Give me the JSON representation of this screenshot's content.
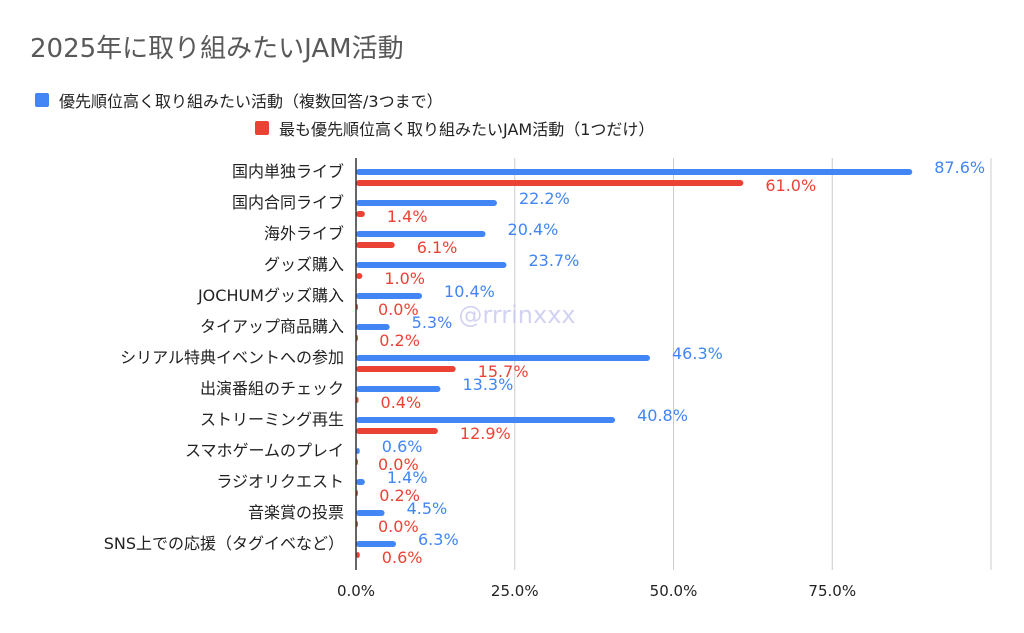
{
  "chart_data": {
    "type": "bar",
    "orientation": "horizontal",
    "title": "2025年に取り組みたいJAM活動",
    "categories": [
      "国内単独ライブ",
      "国内合同ライブ",
      "海外ライブ",
      "グッズ購入",
      "JOCHUMグッズ購入",
      "タイアップ商品購入",
      "シリアル特典イベントへの参加",
      "出演番組のチェック",
      "ストリーミング再生",
      "スマホゲームのプレイ",
      "ラジオリクエスト",
      "音楽賞の投票",
      "SNS上での応援（タグイベなど）"
    ],
    "series": [
      {
        "name": "優先順位高く取り組みたい活動（複数回答/3つまで）",
        "color": "#4285f4",
        "values": [
          87.6,
          22.2,
          20.4,
          23.7,
          10.4,
          5.3,
          46.3,
          13.3,
          40.8,
          0.6,
          1.4,
          4.5,
          6.3
        ]
      },
      {
        "name": "最も優先順位高く取り組みたいJAM活動（1つだけ）",
        "color": "#ea4335",
        "values": [
          61.0,
          1.4,
          6.1,
          1.0,
          0.0,
          0.2,
          15.7,
          0.4,
          12.9,
          0.0,
          0.2,
          0.0,
          0.6
        ]
      }
    ],
    "xlim": [
      0,
      100
    ],
    "xticks": [
      0,
      25,
      50,
      75,
      100
    ],
    "xtick_labels": [
      "0.0%",
      "25.0%",
      "50.0%",
      "75.0%",
      ""
    ],
    "grid": true,
    "legend_position": "top",
    "data_labels": true,
    "watermark": "@rrrinxxx"
  }
}
